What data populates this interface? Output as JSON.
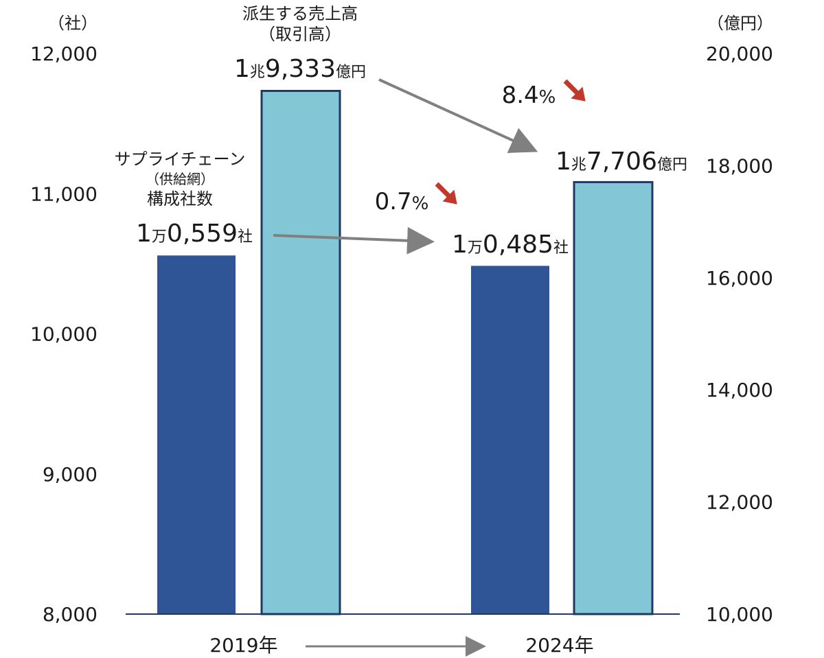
{
  "chart_data": {
    "type": "bar",
    "categories": [
      "2019年",
      "2024年"
    ],
    "series": [
      {
        "name": "サプライチェーン（供給網）構成社数",
        "name_lines": [
          "サプライチェーン",
          "（供給網）",
          "構成社数"
        ],
        "axis": "left",
        "color": "#2f5597",
        "values": [
          10559,
          10485
        ],
        "labels": [
          {
            "main": "1",
            "unit1": "万",
            "rest": "0,559",
            "unit2": "社"
          },
          {
            "main": "1",
            "unit1": "万",
            "rest": "0,485",
            "unit2": "社"
          }
        ]
      },
      {
        "name": "派生する売上高（取引高）",
        "name_lines": [
          "派生する売上高",
          "（取引高）"
        ],
        "axis": "right",
        "color": "#83c6d6",
        "border": "#1f3864",
        "values": [
          19333,
          17706
        ],
        "labels": [
          {
            "main": "1",
            "unit1": "兆",
            "rest": "9,333",
            "unit2": "億円"
          },
          {
            "main": "1",
            "unit1": "兆",
            "rest": "7,706",
            "unit2": "億円"
          }
        ]
      }
    ],
    "left_axis": {
      "unit": "（社）",
      "ylim": [
        8000,
        12000
      ],
      "ticks": [
        "8,000",
        "9,000",
        "10,000",
        "11,000",
        "12,000"
      ],
      "tick_values": [
        8000,
        9000,
        10000,
        11000,
        12000
      ]
    },
    "right_axis": {
      "unit": "（億円）",
      "ylim": [
        10000,
        20000
      ],
      "ticks": [
        "10,000",
        "12,000",
        "14,000",
        "16,000",
        "18,000",
        "20,000"
      ],
      "tick_values": [
        10000,
        12000,
        14000,
        16000,
        18000,
        20000
      ]
    },
    "annotations": [
      {
        "series": 0,
        "pct": "0.7",
        "pct_unit": "%",
        "direction": "down"
      },
      {
        "series": 1,
        "pct": "8.4",
        "pct_unit": "%",
        "direction": "down"
      }
    ],
    "colors": {
      "arrow_gray": "#808080",
      "arrow_red": "#c0392b"
    }
  }
}
